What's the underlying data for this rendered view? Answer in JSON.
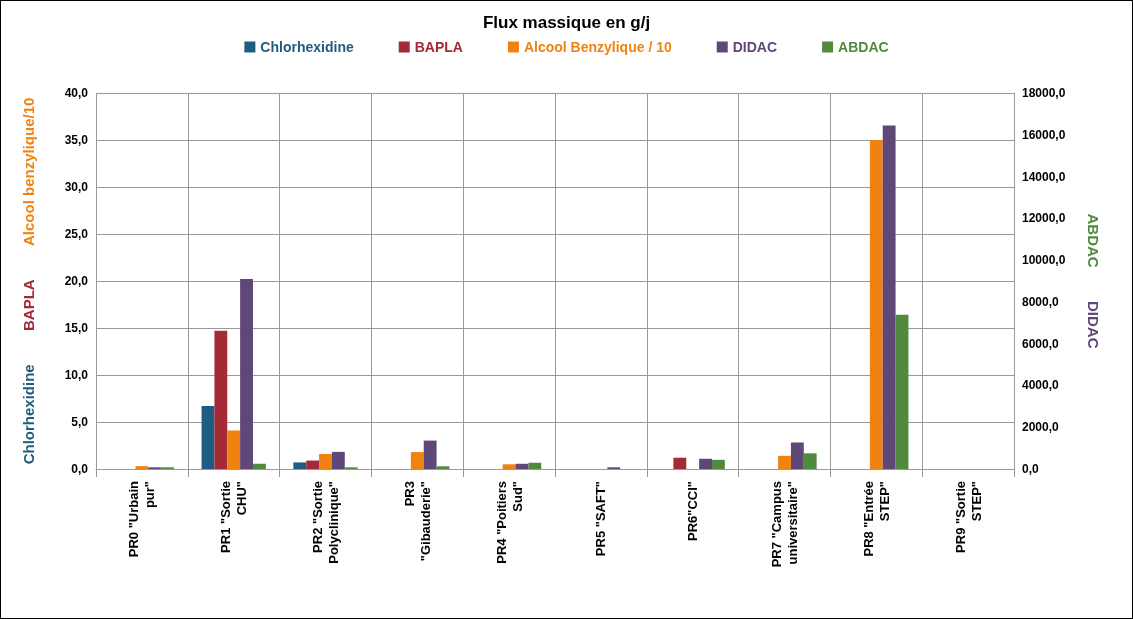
{
  "chart_data": {
    "type": "bar",
    "title": "Flux massique en g/j",
    "ylabel": "Chlorhexidine  BAPLA  Alcool benzylique/10",
    "y2label": "ABDAC  DIDAC",
    "categories": [
      "PR0 \"Urbain\npur\"",
      "PR1 \"Sortie\nCHU\"",
      "PR2 \"Sortie\nPolyclinique\"",
      "PR3\n\"Gibauderie\"",
      "PR4 \"Poitiers\nSud\"",
      "PR5 \"SAFT\"",
      "PR6\"CCI\"",
      "PR7 \"Campus\nuniversitaire\"",
      "PR8 \"Entrée\nSTEP\"",
      "PR9 \"Sortie\nSTEP\""
    ],
    "series": [
      {
        "name": "Chlorhexidine",
        "color": "#1f5c7f",
        "values": [
          null,
          6.7,
          0.7,
          null,
          null,
          null,
          null,
          null,
          null,
          null
        ]
      },
      {
        "name": "BAPLA",
        "color": "#a32a36",
        "values": [
          null,
          14.7,
          0.9,
          null,
          null,
          null,
          1.2,
          null,
          null,
          null
        ]
      },
      {
        "name": "Alcool Benzylique / 10",
        "color": "#f0830f",
        "values": [
          0.3,
          4.1,
          1.6,
          1.8,
          0.5,
          null,
          null,
          1.4,
          35.0,
          null
        ]
      },
      {
        "name": "DIDAC",
        "color": "#5f4778",
        "axis": "y2",
        "values": [
          80,
          9090,
          820,
          1360,
          250,
          80,
          490,
          1270,
          16440,
          null
        ]
      },
      {
        "name": "ABDAC",
        "color": "#4f8a3f",
        "axis": "y2",
        "values": [
          80,
          250,
          80,
          130,
          300,
          null,
          440,
          750,
          7390,
          null
        ]
      }
    ],
    "ylim": [
      0,
      40
    ],
    "yticks": [
      {
        "value": 0,
        "label": "0,0"
      },
      {
        "value": 5,
        "label": "5,0"
      },
      {
        "value": 10,
        "label": "10,0"
      },
      {
        "value": 15,
        "label": "15,0"
      },
      {
        "value": 20,
        "label": "20,0"
      },
      {
        "value": 25,
        "label": "25,0"
      },
      {
        "value": 30,
        "label": "30,0"
      },
      {
        "value": 35,
        "label": "35,0"
      },
      {
        "value": 40,
        "label": "40,0"
      }
    ],
    "y2lim": [
      0,
      18000
    ],
    "y2ticks": [
      {
        "value": 0,
        "label": "0,0"
      },
      {
        "value": 2000,
        "label": "2000,0"
      },
      {
        "value": 4000,
        "label": "4000,0"
      },
      {
        "value": 6000,
        "label": "6000,0"
      },
      {
        "value": 8000,
        "label": "8000,0"
      },
      {
        "value": 10000,
        "label": "10000,0"
      },
      {
        "value": 12000,
        "label": "12000,0"
      },
      {
        "value": 14000,
        "label": "14000,0"
      },
      {
        "value": 16000,
        "label": "16000,0"
      },
      {
        "value": 18000,
        "label": "18000,0"
      }
    ],
    "grid": true,
    "legend": "top"
  }
}
